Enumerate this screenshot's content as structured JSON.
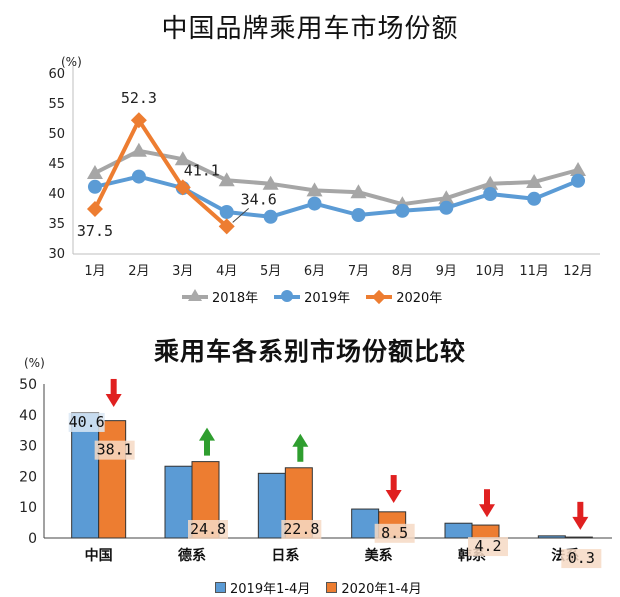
{
  "chart_data": [
    {
      "type": "line",
      "title": "中国品牌乘用车市场份额",
      "ylabel": "(%)",
      "ylim": [
        30,
        60
      ],
      "yticks": [
        30,
        35,
        40,
        45,
        50,
        55,
        60
      ],
      "categories": [
        "1月",
        "2月",
        "3月",
        "4月",
        "5月",
        "6月",
        "7月",
        "8月",
        "9月",
        "10月",
        "11月",
        "12月"
      ],
      "series": [
        {
          "name": "2018年",
          "color": "#a6a6a6",
          "marker": "triangle",
          "values": [
            43.5,
            47.2,
            45.8,
            42.3,
            41.7,
            40.6,
            40.3,
            38.3,
            39.3,
            41.7,
            42.0,
            44.0
          ]
        },
        {
          "name": "2019年",
          "color": "#5b9bd5",
          "marker": "circle",
          "values": [
            41.2,
            42.9,
            41.0,
            37.0,
            36.2,
            38.4,
            36.5,
            37.2,
            37.7,
            40.0,
            39.2,
            42.2
          ]
        },
        {
          "name": "2020年",
          "color": "#ed7d31",
          "marker": "diamond",
          "values": [
            37.5,
            52.3,
            41.1,
            34.6
          ]
        }
      ],
      "labels": [
        "37.5",
        "52.3",
        "41.1",
        "34.6"
      ]
    },
    {
      "type": "bar",
      "title": "乘用车各系别市场份额比较",
      "ylabel": "(%)",
      "ylim": [
        0,
        50
      ],
      "yticks": [
        0,
        10,
        20,
        30,
        40,
        50
      ],
      "categories": [
        "中国",
        "德系",
        "日系",
        "美系",
        "韩系",
        "法系"
      ],
      "series": [
        {
          "name": "2019年1-4月",
          "color": "#5b9bd5",
          "values": [
            40.6,
            23.3,
            21.0,
            9.4,
            4.8,
            0.7
          ]
        },
        {
          "name": "2020年1-4月",
          "color": "#ed7d31",
          "values": [
            38.1,
            24.8,
            22.8,
            8.5,
            4.2,
            0.3
          ]
        }
      ],
      "labels": [
        "40.6",
        "38.1",
        "24.8",
        "22.8",
        "8.5",
        "4.2",
        "0.3"
      ],
      "trend_arrows": [
        "down",
        "up",
        "up",
        "down",
        "down",
        "down"
      ]
    }
  ]
}
